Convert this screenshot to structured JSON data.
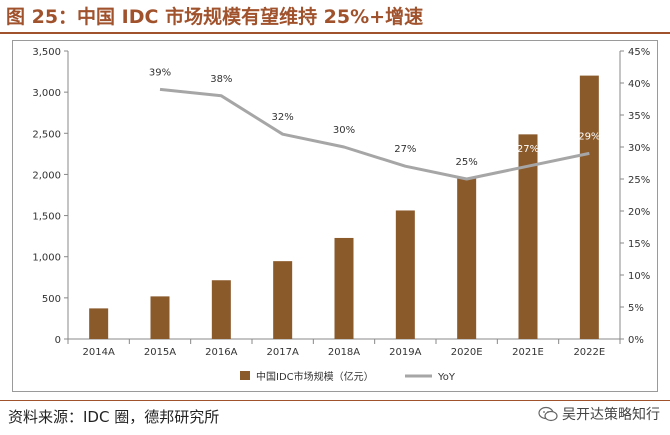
{
  "figure": {
    "title": "图 25：中国 IDC 市场规模有望维持 25%+增速",
    "source": "资料来源：IDC 圈，德邦研究所",
    "watermark": "吴开达策略知行"
  },
  "colors": {
    "bar": "#8b5a2b",
    "line": "#a6a6a6",
    "title": "#a0522d"
  },
  "chart_data": {
    "type": "bar",
    "categories": [
      "2014A",
      "2015A",
      "2016A",
      "2017A",
      "2018A",
      "2019A",
      "2020E",
      "2021E",
      "2022E"
    ],
    "series": [
      {
        "name": "中国IDC市场规模（亿元）",
        "type": "bar",
        "axis": "left",
        "values": [
          372,
          518,
          714,
          946,
          1228,
          1562,
          1958,
          2487,
          3201
        ]
      },
      {
        "name": "YoY",
        "type": "line",
        "axis": "right",
        "values": [
          null,
          39,
          38,
          32,
          30,
          27,
          25,
          27,
          29
        ],
        "labels": [
          "",
          "39%",
          "38%",
          "32%",
          "30%",
          "27%",
          "25%",
          "27%",
          "29%"
        ]
      }
    ],
    "y_left": {
      "lim": [
        0,
        3500
      ],
      "ticks": [
        "0",
        "500",
        "1,000",
        "1,500",
        "2,000",
        "2,500",
        "3,000",
        "3,500"
      ]
    },
    "y_right": {
      "lim": [
        0,
        45
      ],
      "ticks": [
        "0%",
        "5%",
        "10%",
        "15%",
        "20%",
        "25%",
        "30%",
        "35%",
        "40%",
        "45%"
      ]
    },
    "grid": false,
    "legend": "bottom"
  }
}
